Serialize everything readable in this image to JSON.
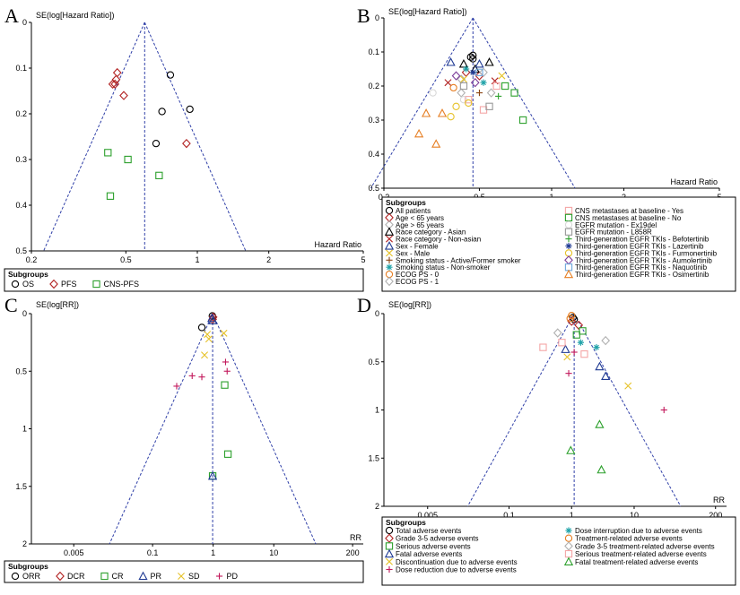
{
  "chart_data": [
    {
      "panel": "A",
      "type": "scatter",
      "subtype": "funnel",
      "ylabel": "SE(log[Hazard Ratio])",
      "xlabel": "Hazard Ratio",
      "xscale": "log",
      "xlim": [
        0.2,
        5
      ],
      "ylim": [
        0,
        0.5
      ],
      "xticks": [
        0.2,
        0.5,
        1,
        2,
        5
      ],
      "xtick_labels": [
        "0.2",
        "0.5",
        "1",
        "2",
        "5"
      ],
      "yticks": [
        0,
        0.1,
        0.2,
        0.3,
        0.4,
        0.5
      ],
      "ytick_labels": [
        "0",
        "0.1",
        "0.2",
        "0.3",
        "0.4",
        "0.5"
      ],
      "pooled": 0.6,
      "legend_title": "Subgroups",
      "series": [
        {
          "name": "OS",
          "marker": "circle",
          "color": "#000000",
          "points": [
            [
              0.77,
              0.115
            ],
            [
              0.71,
              0.195
            ],
            [
              0.93,
              0.19
            ],
            [
              0.67,
              0.265
            ]
          ]
        },
        {
          "name": "PFS",
          "marker": "diamond",
          "color": "#b22222",
          "points": [
            [
              0.46,
              0.11
            ],
            [
              0.455,
              0.125
            ],
            [
              0.44,
              0.135
            ],
            [
              0.45,
              0.135
            ],
            [
              0.49,
              0.16
            ],
            [
              0.9,
              0.265
            ]
          ]
        },
        {
          "name": "CNS-PFS",
          "marker": "square",
          "color": "#2ca02c",
          "points": [
            [
              0.42,
              0.285
            ],
            [
              0.51,
              0.3
            ],
            [
              0.69,
              0.335
            ],
            [
              0.43,
              0.38
            ]
          ]
        }
      ]
    },
    {
      "panel": "B",
      "type": "scatter",
      "subtype": "funnel",
      "ylabel": "SE(log[Hazard Ratio])",
      "xlabel": "Hazard Ratio",
      "xscale": "log",
      "xlim": [
        0.2,
        5
      ],
      "ylim": [
        0,
        0.5
      ],
      "xticks": [
        0.2,
        0.5,
        1,
        2,
        5
      ],
      "xtick_labels": [
        "0.2",
        "0.5",
        "1",
        "2",
        "5"
      ],
      "yticks": [
        0,
        0.1,
        0.2,
        0.3,
        0.4,
        0.5
      ],
      "ytick_labels": [
        "0",
        "0.1",
        "0.2",
        "0.3",
        "0.4",
        "0.5"
      ],
      "pooled": 0.47,
      "legend_title": "Subgroups",
      "series": [
        {
          "name": "All patients",
          "marker": "circle",
          "color": "#000000",
          "points": [
            [
              0.47,
              0.11
            ],
            [
              0.46,
              0.115
            ],
            [
              0.47,
              0.12
            ]
          ]
        },
        {
          "name": "Age < 65 years",
          "marker": "diamond",
          "color": "#b22222",
          "points": [
            [
              0.44,
              0.16
            ],
            [
              0.5,
              0.17
            ]
          ]
        },
        {
          "name": "Age > 65 years",
          "marker": "diamond",
          "color": "#b0b0b0",
          "points": [
            [
              0.52,
              0.16
            ],
            [
              0.42,
              0.18
            ]
          ]
        },
        {
          "name": "Race category - Asian",
          "marker": "triangle",
          "color": "#000000",
          "points": [
            [
              0.43,
              0.135
            ],
            [
              0.55,
              0.13
            ],
            [
              0.48,
              0.15
            ]
          ]
        },
        {
          "name": "Race category - Non-asian",
          "marker": "x",
          "color": "#b22222",
          "points": [
            [
              0.37,
              0.19
            ],
            [
              0.58,
              0.185
            ]
          ]
        },
        {
          "name": "Sex - Female",
          "marker": "triangle",
          "color": "#1f3a93",
          "points": [
            [
              0.38,
              0.13
            ],
            [
              0.5,
              0.135
            ]
          ]
        },
        {
          "name": "Sex - Male",
          "marker": "x",
          "color": "#e6c229",
          "points": [
            [
              0.43,
              0.18
            ],
            [
              0.62,
              0.17
            ]
          ]
        },
        {
          "name": "Smoking status - Active/Former smoker",
          "marker": "plus",
          "color": "#8b4513",
          "points": [
            [
              0.5,
              0.22
            ]
          ]
        },
        {
          "name": "Smoking status - Non-smoker",
          "marker": "asterisk",
          "color": "#1fa2a8",
          "points": [
            [
              0.44,
              0.15
            ],
            [
              0.52,
              0.19
            ]
          ]
        },
        {
          "name": "ECOG PS - 0",
          "marker": "circle",
          "color": "#e67e22",
          "points": [
            [
              0.39,
              0.205
            ]
          ]
        },
        {
          "name": "ECOG PS - 1",
          "marker": "diamond",
          "color": "#b0b0b0",
          "points": [
            [
              0.42,
              0.22
            ],
            [
              0.56,
              0.22
            ]
          ]
        },
        {
          "name": "CNS metastases at baseline - Yes",
          "marker": "square",
          "color": "#f4a6a6",
          "points": [
            [
              0.45,
              0.24
            ],
            [
              0.59,
              0.2
            ],
            [
              0.52,
              0.27
            ]
          ]
        },
        {
          "name": "CNS metastases at baseline - No",
          "marker": "square",
          "color": "#2ca02c",
          "points": [
            [
              0.64,
              0.2
            ],
            [
              0.7,
              0.22
            ],
            [
              0.76,
              0.3
            ]
          ]
        },
        {
          "name": "EGFR mutation - Ex19del",
          "marker": "circle",
          "color": "#d8d8d8",
          "points": [
            [
              0.32,
              0.22
            ],
            [
              0.43,
              0.24
            ]
          ]
        },
        {
          "name": "EGFR mutation - L858R",
          "marker": "square",
          "color": "#999999",
          "points": [
            [
              0.43,
              0.2
            ],
            [
              0.55,
              0.26
            ]
          ]
        },
        {
          "name": "Third-generation EGFR TKIs - Befotertinib",
          "marker": "plus",
          "color": "#2ca02c",
          "points": [
            [
              0.6,
              0.23
            ]
          ]
        },
        {
          "name": "Third-generation EGFR TKIs - Lazertinib",
          "marker": "asterisk",
          "color": "#1f3a93",
          "points": [
            [
              0.47,
              0.16
            ]
          ]
        },
        {
          "name": "Third-generation EGFR TKIs - Furmonertinib",
          "marker": "circle",
          "color": "#e6c229",
          "points": [
            [
              0.38,
              0.29
            ],
            [
              0.45,
              0.25
            ],
            [
              0.4,
              0.26
            ]
          ]
        },
        {
          "name": "Third-generation EGFR TKIs - Aumolertinib",
          "marker": "diamond",
          "color": "#7d3c98",
          "points": [
            [
              0.48,
              0.19
            ],
            [
              0.4,
              0.17
            ]
          ]
        },
        {
          "name": "Third-generation EGFR TKIs - Naquotinib",
          "marker": "square",
          "color": "#6fa8dc",
          "points": [
            [
              0.5,
              0.16
            ]
          ]
        },
        {
          "name": "Third-generation EGFR TKIs - Osimertinib",
          "marker": "triangle",
          "color": "#e67e22",
          "points": [
            [
              0.28,
              0.34
            ],
            [
              0.33,
              0.37
            ],
            [
              0.3,
              0.28
            ],
            [
              0.35,
              0.28
            ]
          ]
        }
      ]
    },
    {
      "panel": "C",
      "type": "scatter",
      "subtype": "funnel",
      "ylabel": "SE(log[RR])",
      "xlabel": "RR",
      "xscale": "log",
      "xlim": [
        0.001,
        300
      ],
      "ylim": [
        0,
        2
      ],
      "xticks": [
        0.005,
        0.1,
        1,
        10,
        200
      ],
      "xtick_labels": [
        "0.005",
        "0.1",
        "1",
        "10",
        "200"
      ],
      "yticks": [
        0,
        0.5,
        1,
        1.5,
        2
      ],
      "ytick_labels": [
        "0",
        "0.5",
        "1",
        "1.5",
        "2"
      ],
      "pooled": 0.98,
      "legend_title": "Subgroups",
      "series": [
        {
          "name": "ORR",
          "marker": "circle",
          "color": "#000000",
          "points": [
            [
              0.65,
              0.12
            ],
            [
              0.97,
              0.02
            ]
          ]
        },
        {
          "name": "DCR",
          "marker": "diamond",
          "color": "#b22222",
          "points": [
            [
              1.0,
              0.03
            ],
            [
              0.98,
              0.05
            ]
          ]
        },
        {
          "name": "CR",
          "marker": "square",
          "color": "#2ca02c",
          "points": [
            [
              1.55,
              0.62
            ],
            [
              1.75,
              1.22
            ],
            [
              0.98,
              1.41
            ]
          ]
        },
        {
          "name": "PR",
          "marker": "triangle",
          "color": "#1f3a93",
          "points": [
            [
              0.95,
              0.04
            ],
            [
              0.98,
              1.41
            ],
            [
              0.99,
              0.06
            ]
          ]
        },
        {
          "name": "SD",
          "marker": "x",
          "color": "#e6c229",
          "points": [
            [
              0.8,
              0.18
            ],
            [
              0.85,
              0.22
            ],
            [
              1.5,
              0.17
            ],
            [
              0.72,
              0.36
            ]
          ]
        },
        {
          "name": "PD",
          "marker": "plus",
          "color": "#c2185b",
          "points": [
            [
              0.25,
              0.63
            ],
            [
              0.45,
              0.54
            ],
            [
              0.65,
              0.55
            ],
            [
              1.6,
              0.42
            ],
            [
              1.7,
              0.5
            ]
          ]
        }
      ]
    },
    {
      "panel": "D",
      "type": "scatter",
      "subtype": "funnel",
      "ylabel": "SE(log[RR])",
      "xlabel": "RR",
      "xscale": "log",
      "xlim": [
        0.001,
        300
      ],
      "ylim": [
        0,
        2
      ],
      "xticks": [
        0.005,
        0.1,
        1,
        10,
        200
      ],
      "xtick_labels": [
        "0.005",
        "0.1",
        "1",
        "10",
        "200"
      ],
      "yticks": [
        0,
        0.5,
        1,
        1.5,
        2
      ],
      "ytick_labels": [
        "0",
        "0.5",
        "1",
        "1.5",
        "2"
      ],
      "pooled": 1.1,
      "legend_title": "Subgroups",
      "series": [
        {
          "name": "Total adverse events",
          "marker": "circle",
          "color": "#000000",
          "points": [
            [
              1.05,
              0.04
            ],
            [
              1.1,
              0.06
            ]
          ]
        },
        {
          "name": "Grade 3-5 adverse events",
          "marker": "diamond",
          "color": "#b22222",
          "points": [
            [
              1.0,
              0.08
            ],
            [
              1.3,
              0.12
            ]
          ]
        },
        {
          "name": "Serious adverse events",
          "marker": "square",
          "color": "#2ca02c",
          "points": [
            [
              1.2,
              0.22
            ],
            [
              1.5,
              0.18
            ]
          ]
        },
        {
          "name": "Fatal adverse events",
          "marker": "triangle",
          "color": "#1f3a93",
          "points": [
            [
              0.8,
              0.37
            ],
            [
              2.8,
              0.55
            ],
            [
              3.5,
              0.65
            ]
          ]
        },
        {
          "name": "Discontinuation due to adverse events",
          "marker": "x",
          "color": "#e6c229",
          "points": [
            [
              0.85,
              0.45
            ],
            [
              8.0,
              0.75
            ]
          ]
        },
        {
          "name": "Dose reduction due to adverse events",
          "marker": "plus",
          "color": "#c2185b",
          "points": [
            [
              0.9,
              0.62
            ],
            [
              1.1,
              0.4
            ],
            [
              30.0,
              1.0
            ]
          ]
        },
        {
          "name": "Dose interruption due to adverse events",
          "marker": "asterisk",
          "color": "#1fa2a8",
          "points": [
            [
              1.4,
              0.3
            ],
            [
              2.5,
              0.35
            ]
          ]
        },
        {
          "name": "Treatment-related adverse events",
          "marker": "circle",
          "color": "#e67e22",
          "points": [
            [
              1.0,
              0.02
            ],
            [
              0.95,
              0.05
            ]
          ]
        },
        {
          "name": "Grade 3-5 treatment-related adverse events",
          "marker": "diamond",
          "color": "#b0b0b0",
          "points": [
            [
              0.6,
              0.2
            ],
            [
              3.5,
              0.28
            ]
          ]
        },
        {
          "name": "Serious treatment-related adverse events",
          "marker": "square",
          "color": "#f4a6a6",
          "points": [
            [
              0.35,
              0.35
            ],
            [
              1.6,
              0.42
            ],
            [
              0.7,
              0.3
            ]
          ]
        },
        {
          "name": "Fatal treatment-related adverse events",
          "marker": "triangle",
          "color": "#2ca02c",
          "points": [
            [
              2.8,
              1.15
            ],
            [
              0.97,
              1.42
            ],
            [
              3.0,
              1.62
            ]
          ]
        }
      ]
    }
  ]
}
